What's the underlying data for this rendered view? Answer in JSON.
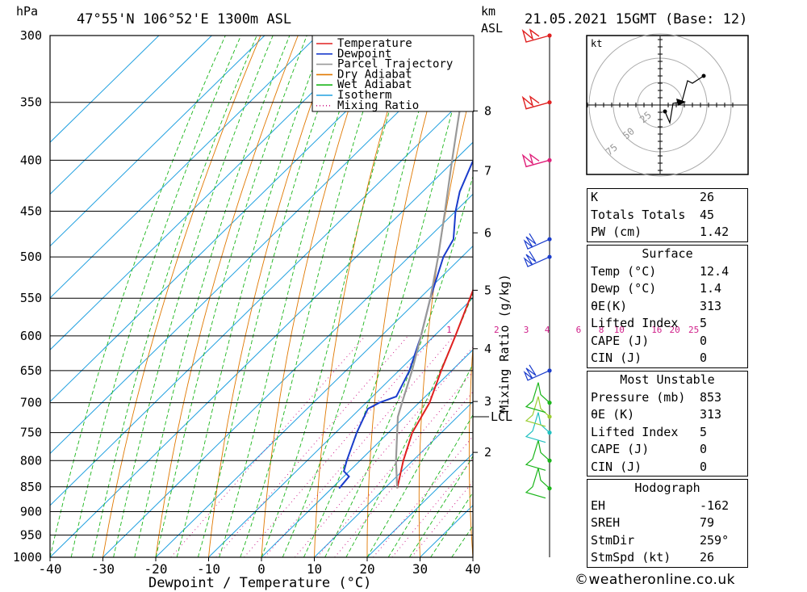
{
  "header": {
    "unit_hpa": "hPa",
    "location": "47°55'N  106°52'E  1300m  ASL",
    "unit_km": "km",
    "unit_asl": "ASL",
    "datetime": "21.05.2021  15GMT  (Base: 12)"
  },
  "footer": {
    "credit": "©weatheronline.co.uk"
  },
  "chart_data": {
    "type": "line",
    "subtype": "skew-T log-P",
    "xlabel": "Dewpoint / Temperature (°C)",
    "ylabel": "",
    "y2label": "Mixing Ratio (g/kg)",
    "x_ticks": [
      -40,
      -30,
      -20,
      -10,
      0,
      10,
      20,
      30,
      40
    ],
    "y_ticks": [
      300,
      350,
      400,
      450,
      500,
      550,
      600,
      650,
      700,
      750,
      800,
      850,
      900,
      950,
      1000
    ],
    "km_ticks": [
      {
        "label": "8",
        "p": 357
      },
      {
        "label": "7",
        "p": 410
      },
      {
        "label": "6",
        "p": 473
      },
      {
        "label": "5",
        "p": 540
      },
      {
        "label": "4",
        "p": 618
      },
      {
        "label": "3",
        "p": 698
      },
      {
        "label": "2",
        "p": 785
      }
    ],
    "lcl": {
      "label": "LCL",
      "p": 723
    },
    "mixing_ratio_labels": [
      {
        "label": "1",
        "t": -7.2
      },
      {
        "label": "2",
        "t": 1.8
      },
      {
        "label": "3",
        "t": 7.4
      },
      {
        "label": "4",
        "t": 11.4
      },
      {
        "label": "6",
        "t": 17.3
      },
      {
        "label": "8",
        "t": 21.6
      },
      {
        "label": "10",
        "t": 25.0
      },
      {
        "label": "16",
        "t": 32.1
      },
      {
        "label": "20",
        "t": 35.5
      },
      {
        "label": "25",
        "t": 39.1
      }
    ],
    "legend": {
      "placement": "top",
      "items": [
        {
          "label": "Temperature",
          "color": "#e02020",
          "style": "solid"
        },
        {
          "label": "Dewpoint",
          "color": "#1a3ccc",
          "style": "solid"
        },
        {
          "label": "Parcel Trajectory",
          "color": "#999999",
          "style": "solid"
        },
        {
          "label": "Dry Adiabat",
          "color": "#e07800",
          "style": "solid"
        },
        {
          "label": "Wet Adiabat",
          "color": "#1ab51a",
          "style": "solid"
        },
        {
          "label": "Isotherm",
          "color": "#20a0e0",
          "style": "solid"
        },
        {
          "label": "Mixing Ratio",
          "color": "#d0208a",
          "style": "dotted"
        }
      ]
    },
    "series": [
      {
        "name": "Temperature",
        "points": [
          {
            "p": 853,
            "t": 12.4
          },
          {
            "p": 800,
            "t": 8.2
          },
          {
            "p": 750,
            "t": 4.5
          },
          {
            "p": 700,
            "t": 2.0
          },
          {
            "p": 650,
            "t": -2.0
          },
          {
            "p": 600,
            "t": -6.0
          },
          {
            "p": 550,
            "t": -10.5
          },
          {
            "p": 500,
            "t": -15.5
          },
          {
            "p": 470,
            "t": -19.0
          },
          {
            "p": 450,
            "t": -20.5
          },
          {
            "p": 420,
            "t": -23.0
          },
          {
            "p": 400,
            "t": -26.0
          },
          {
            "p": 350,
            "t": -33.5
          },
          {
            "p": 300,
            "t": -42.5
          }
        ]
      },
      {
        "name": "Dewpoint",
        "points": [
          {
            "p": 853,
            "t": 1.4
          },
          {
            "p": 830,
            "t": 1.0
          },
          {
            "p": 820,
            "t": -1.0
          },
          {
            "p": 800,
            "t": -2.5
          },
          {
            "p": 750,
            "t": -6.0
          },
          {
            "p": 710,
            "t": -8.5
          },
          {
            "p": 700,
            "t": -7.5
          },
          {
            "p": 690,
            "t": -5.5
          },
          {
            "p": 650,
            "t": -8.0
          },
          {
            "p": 600,
            "t": -12.5
          },
          {
            "p": 550,
            "t": -18.0
          },
          {
            "p": 500,
            "t": -23.5
          },
          {
            "p": 480,
            "t": -25.0
          },
          {
            "p": 450,
            "t": -30.0
          },
          {
            "p": 430,
            "t": -33.0
          },
          {
            "p": 400,
            "t": -36.5
          },
          {
            "p": 360,
            "t": -41.0
          },
          {
            "p": 350,
            "t": -44.0
          },
          {
            "p": 340,
            "t": -49.0
          },
          {
            "p": 320,
            "t": -57.0
          },
          {
            "p": 300,
            "t": -62.0
          }
        ]
      },
      {
        "name": "Parcel Trajectory",
        "points": [
          {
            "p": 853,
            "t": 12.4
          },
          {
            "p": 800,
            "t": 6.8
          },
          {
            "p": 723,
            "t": -1.3
          },
          {
            "p": 700,
            "t": -3.2
          },
          {
            "p": 650,
            "t": -7.5
          },
          {
            "p": 600,
            "t": -12.5
          },
          {
            "p": 550,
            "t": -18.0
          },
          {
            "p": 500,
            "t": -24.5
          },
          {
            "p": 450,
            "t": -32.0
          },
          {
            "p": 400,
            "t": -40.5
          },
          {
            "p": 350,
            "t": -50.0
          },
          {
            "p": 300,
            "t": -61.0
          }
        ]
      }
    ],
    "wind_barbs": [
      {
        "p": 853,
        "color": "#1ab51a"
      },
      {
        "p": 800,
        "color": "#1ab51a"
      },
      {
        "p": 750,
        "color": "#20c0c0"
      },
      {
        "p": 723,
        "color": "#9acd32"
      },
      {
        "p": 700,
        "color": "#1ab51a"
      },
      {
        "p": 650,
        "color": "#1a3ccc"
      },
      {
        "p": 500,
        "color": "#1a3ccc"
      },
      {
        "p": 480,
        "color": "#1a3ccc"
      },
      {
        "p": 400,
        "color": "#e0207a"
      },
      {
        "p": 350,
        "color": "#e02020"
      },
      {
        "p": 300,
        "color": "#e02020"
      }
    ],
    "hodograph": {
      "unit": "kt",
      "ring_labels": [
        "25",
        "50",
        "75"
      ]
    }
  },
  "indices": {
    "basic": [
      {
        "label": "K",
        "value": "26"
      },
      {
        "label": "Totals Totals",
        "value": "45"
      },
      {
        "label": "PW (cm)",
        "value": "1.42"
      }
    ],
    "surface_title": "Surface",
    "surface": [
      {
        "label": "Temp (°C)",
        "value": "12.4"
      },
      {
        "label": "Dewp (°C)",
        "value": "1.4"
      },
      {
        "label": "θE(K)",
        "value": "313"
      },
      {
        "label": "Lifted Index",
        "value": "5"
      },
      {
        "label": "CAPE (J)",
        "value": "0"
      },
      {
        "label": "CIN (J)",
        "value": "0"
      }
    ],
    "mu_title": "Most Unstable",
    "mu": [
      {
        "label": "Pressure (mb)",
        "value": "853"
      },
      {
        "label": "θE (K)",
        "value": "313"
      },
      {
        "label": "Lifted Index",
        "value": "5"
      },
      {
        "label": "CAPE (J)",
        "value": "0"
      },
      {
        "label": "CIN (J)",
        "value": "0"
      }
    ],
    "hodo_title": "Hodograph",
    "hodo": [
      {
        "label": "EH",
        "value": "-162"
      },
      {
        "label": "SREH",
        "value": "79"
      },
      {
        "label": "StmDir",
        "value": "259°"
      },
      {
        "label": "StmSpd (kt)",
        "value": "26"
      }
    ]
  }
}
